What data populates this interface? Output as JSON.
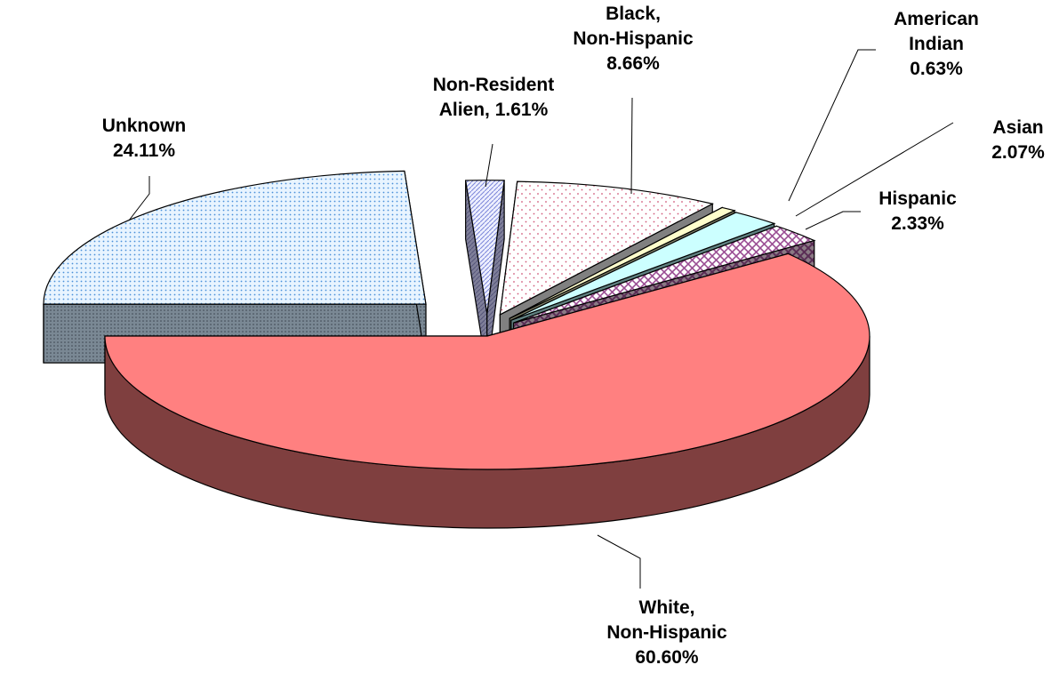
{
  "chart_data": {
    "type": "pie",
    "title": "",
    "style": "3d-exploded",
    "slices": [
      {
        "name": "White, Non-Hispanic",
        "value": 60.6,
        "label_lines": [
          "White,",
          "Non-Hispanic",
          "60.60%"
        ],
        "color": "#ff8080",
        "side_color": "#7f3f3f",
        "pattern": "solid"
      },
      {
        "name": "Hispanic",
        "value": 2.33,
        "label_lines": [
          "Hispanic",
          "2.33%"
        ],
        "color": "#ffffff",
        "side_color": "#8a5a78",
        "pattern": "crosshatch-purple"
      },
      {
        "name": "Asian",
        "value": 2.07,
        "label_lines": [
          "Asian",
          "2.07%"
        ],
        "color": "#ccffff",
        "side_color": "#5f8080",
        "pattern": "solid"
      },
      {
        "name": "American Indian",
        "value": 0.63,
        "label_lines": [
          "American",
          "Indian",
          "0.63%"
        ],
        "color": "#ffffcc",
        "side_color": "#7f7f66",
        "pattern": "solid"
      },
      {
        "name": "Black, Non-Hispanic",
        "value": 8.66,
        "label_lines": [
          "Black,",
          "Non-Hispanic",
          "8.66%"
        ],
        "color": "#ffffff",
        "side_color": "#808080",
        "pattern": "dots-red"
      },
      {
        "name": "Non-Resident Alien",
        "value": 1.61,
        "label_lines": [
          "Non-Resident",
          "Alien, 1.61%"
        ],
        "color": "#ccccff",
        "side_color": "#7f7f99",
        "pattern": "diagonal-blue"
      },
      {
        "name": "Unknown",
        "value": 24.11,
        "label_lines": [
          "Unknown",
          "24.11%"
        ],
        "color": "#cce6ff",
        "side_color": "#7f8c99",
        "pattern": "dots-blue"
      }
    ]
  }
}
